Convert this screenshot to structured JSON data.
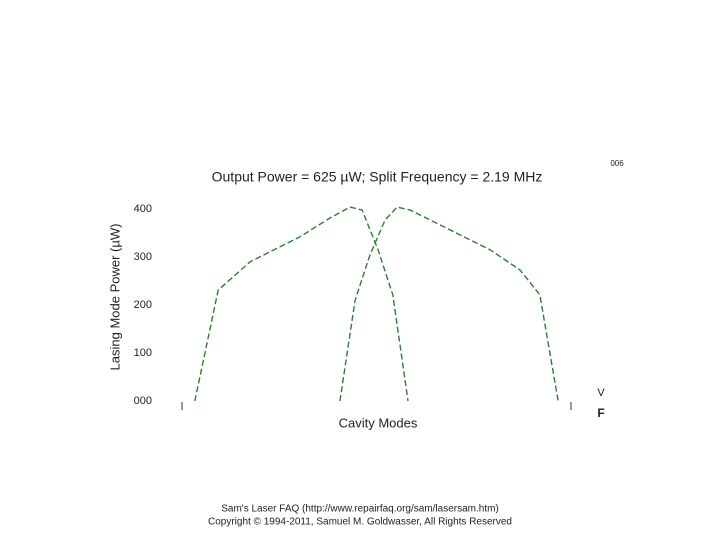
{
  "chart_data": {
    "type": "line",
    "title": "Output Power = 625 µW; Split Frequency = 2.19 MHz",
    "y_label": "Lasing Mode Power (µW)",
    "x_label": "Cavity Modes",
    "corner_note": "006",
    "side_marks": [
      "V",
      "F"
    ],
    "series": [
      {
        "color": "#2e7d32",
        "x": [
          3.3,
          9.3,
          17.5,
          30.3,
          38,
          43.2,
          46.3,
          50.4,
          54.2,
          58.1
        ],
        "values": [
          0,
          231,
          290,
          342,
          381,
          404,
          398,
          315,
          221,
          0
        ]
      },
      {
        "color": "#2e7d32",
        "x": [
          40.6,
          44.5,
          48.3,
          52.2,
          55.3,
          58.6,
          66.3,
          79.2,
          86.9,
          92,
          96.7
        ],
        "values": [
          0,
          210,
          304,
          377,
          404,
          398,
          367,
          315,
          273,
          221,
          0
        ]
      }
    ],
    "xlim": [
      0,
      100
    ],
    "ylim": [
      0,
      400
    ],
    "yticks": [
      {
        "value": 0,
        "label": "000"
      },
      100,
      200,
      300,
      400
    ],
    "dashed": true,
    "footer": [
      "Sam's Laser FAQ (http://www.repairfaq.org/sam/lasersam.htm)",
      "Copyright © 1994-2011, Samuel M. Goldwasser, All Rights Reserved"
    ]
  }
}
